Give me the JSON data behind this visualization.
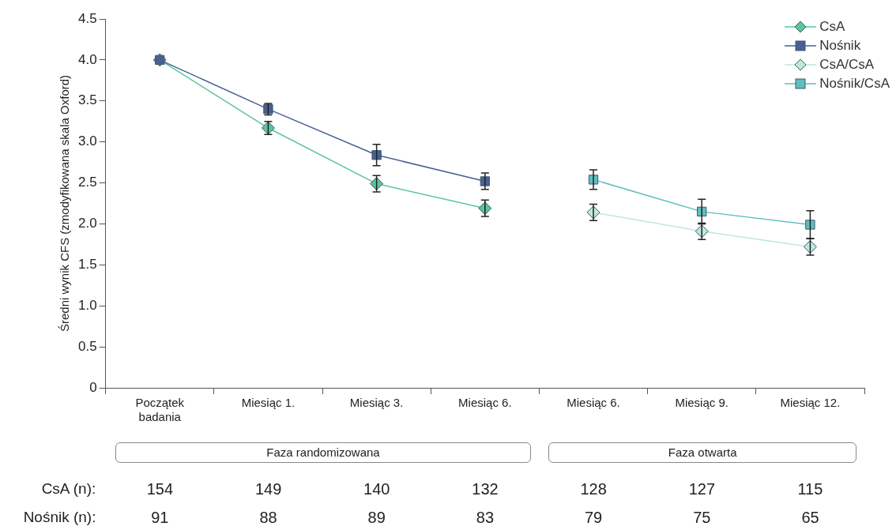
{
  "chart_data": {
    "type": "line",
    "ylabel": "Średni wynik CFS (zmodyfikowana skala Oxford)",
    "categories": [
      "Początek\nbadania",
      "Miesiąc 1.",
      "Miesiąc 3.",
      "Miesiąc 6.",
      "Miesiąc 6.",
      "Miesiąc 9.",
      "Miesiąc 12."
    ],
    "series": [
      {
        "name": "CsA",
        "color": "#5cc49e",
        "marker": "diamond",
        "values": [
          4.0,
          3.17,
          2.49,
          2.19,
          null,
          null,
          null
        ],
        "errors": [
          null,
          0.08,
          0.1,
          0.1,
          null,
          null,
          null
        ]
      },
      {
        "name": "Nośnik",
        "color": "#4a5f94",
        "marker": "square",
        "values": [
          4.0,
          3.4,
          2.84,
          2.52,
          null,
          null,
          null
        ],
        "errors": [
          null,
          0.07,
          0.13,
          0.1,
          null,
          null,
          null
        ]
      },
      {
        "name": "CsA/CsA",
        "color": "#bfe8da",
        "marker": "diamond",
        "values": [
          null,
          null,
          null,
          null,
          2.14,
          1.91,
          1.72
        ],
        "errors": [
          null,
          null,
          null,
          null,
          0.1,
          0.1,
          0.1
        ]
      },
      {
        "name": "Nośnik/CsA",
        "color": "#5fbfbf",
        "marker": "square",
        "values": [
          null,
          null,
          null,
          null,
          2.54,
          2.15,
          1.99
        ],
        "errors": [
          null,
          null,
          null,
          null,
          0.12,
          0.15,
          0.17
        ]
      }
    ],
    "ylim": [
      0,
      4.5
    ],
    "yticks": [
      0,
      0.5,
      {
        "value": 1,
        "label": "1.0"
      },
      1.5,
      {
        "value": 2,
        "label": "2.0"
      },
      2.5,
      {
        "value": 3,
        "label": "3.0"
      },
      3.5,
      {
        "value": 4,
        "label": "4.0"
      },
      4.5
    ],
    "grid": false,
    "legend": "top right",
    "line_style": "solid",
    "annotations": [
      "Faza randomizowana",
      "Faza otwarta",
      "CsA  (n):",
      "154",
      "149",
      "140",
      "132",
      "128",
      "127",
      "115",
      "Nośnik (n):",
      "91",
      "88",
      "89",
      "83",
      "79",
      "75",
      "65"
    ]
  }
}
